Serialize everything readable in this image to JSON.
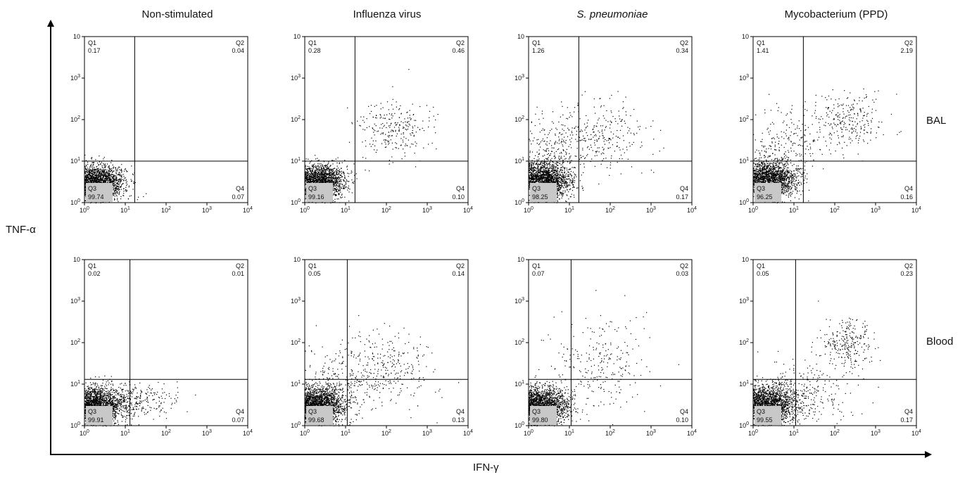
{
  "columns": [
    "Non-stimulated",
    "Influenza virus",
    "S. pneumoniae",
    "Mycobacterium (PPD)"
  ],
  "rows": [
    "BAL",
    "Blood"
  ],
  "axes": {
    "x_label": "IFN-γ",
    "y_label": "TNF-α"
  },
  "colors": {
    "dots": "#000000",
    "q3_box": "#c8c8c8"
  },
  "chart_data": [
    {
      "type": "scatter",
      "column": "Non-stimulated",
      "row": "BAL",
      "xlim": [
        1,
        10000
      ],
      "ylim": [
        1,
        10000
      ],
      "scale": "log",
      "gate": {
        "x": 17,
        "y": 10
      },
      "quadrants": {
        "Q1": {
          "label": "Q1",
          "value": "0.17"
        },
        "Q2": {
          "label": "Q2",
          "value": "0.04"
        },
        "Q3": {
          "label": "Q3",
          "value": "99.74"
        },
        "Q4": {
          "label": "Q4",
          "value": "0.07"
        }
      },
      "population": {
        "core": {
          "mu": [
            0.35,
            0.5
          ],
          "sd": [
            0.32,
            0.2
          ]
        },
        "spread": []
      }
    },
    {
      "type": "scatter",
      "column": "Influenza virus",
      "row": "BAL",
      "xlim": [
        1,
        10000
      ],
      "ylim": [
        1,
        10000
      ],
      "scale": "log",
      "gate": {
        "x": 17,
        "y": 10
      },
      "quadrants": {
        "Q1": {
          "label": "Q1",
          "value": "0.28"
        },
        "Q2": {
          "label": "Q2",
          "value": "0.46"
        },
        "Q3": {
          "label": "Q3",
          "value": "99.16"
        },
        "Q4": {
          "label": "Q4",
          "value": "0.10"
        }
      },
      "population": {
        "core": {
          "mu": [
            0.38,
            0.52
          ],
          "sd": [
            0.3,
            0.2
          ]
        },
        "spread": [
          {
            "mu": [
              2.2,
              1.8
            ],
            "sd": [
              0.45,
              0.35
            ]
          }
        ]
      }
    },
    {
      "type": "scatter",
      "column": "S. pneumoniae",
      "row": "BAL",
      "xlim": [
        1,
        10000
      ],
      "ylim": [
        1,
        10000
      ],
      "scale": "log",
      "gate": {
        "x": 17,
        "y": 10
      },
      "quadrants": {
        "Q1": {
          "label": "Q1",
          "value": "1.26"
        },
        "Q2": {
          "label": "Q2",
          "value": "0.34"
        },
        "Q3": {
          "label": "Q3",
          "value": "98.25"
        },
        "Q4": {
          "label": "Q4",
          "value": "0.17"
        }
      },
      "population": {
        "core": {
          "mu": [
            0.4,
            0.55
          ],
          "sd": [
            0.32,
            0.22
          ]
        },
        "spread": [
          {
            "mu": [
              0.6,
              1.3
            ],
            "sd": [
              0.45,
              0.45
            ]
          },
          {
            "mu": [
              1.8,
              1.6
            ],
            "sd": [
              0.55,
              0.4
            ]
          }
        ]
      }
    },
    {
      "type": "scatter",
      "column": "Mycobacterium (PPD)",
      "row": "BAL",
      "xlim": [
        1,
        10000
      ],
      "ylim": [
        1,
        10000
      ],
      "scale": "log",
      "gate": {
        "x": 17,
        "y": 10
      },
      "quadrants": {
        "Q1": {
          "label": "Q1",
          "value": "1.41"
        },
        "Q2": {
          "label": "Q2",
          "value": "2.19"
        },
        "Q3": {
          "label": "Q3",
          "value": "96.25"
        },
        "Q4": {
          "label": "Q4",
          "value": "0.16"
        }
      },
      "population": {
        "core": {
          "mu": [
            0.42,
            0.56
          ],
          "sd": [
            0.32,
            0.22
          ]
        },
        "spread": [
          {
            "mu": [
              2.35,
              2.0
            ],
            "sd": [
              0.42,
              0.32
            ]
          },
          {
            "mu": [
              0.8,
              1.4
            ],
            "sd": [
              0.5,
              0.4
            ]
          }
        ]
      }
    },
    {
      "type": "scatter",
      "column": "Non-stimulated",
      "row": "Blood",
      "xlim": [
        1,
        10000
      ],
      "ylim": [
        1,
        10000
      ],
      "scale": "log",
      "gate": {
        "x": 13,
        "y": 13
      },
      "quadrants": {
        "Q1": {
          "label": "Q1",
          "value": "0.02"
        },
        "Q2": {
          "label": "Q2",
          "value": "0.01"
        },
        "Q3": {
          "label": "Q3",
          "value": "99.91"
        },
        "Q4": {
          "label": "Q4",
          "value": "0.07"
        }
      },
      "population": {
        "core": {
          "mu": [
            0.32,
            0.5
          ],
          "sd": [
            0.34,
            0.22
          ]
        },
        "spread": [
          {
            "mu": [
              1.3,
              0.6
            ],
            "sd": [
              0.45,
              0.2
            ]
          }
        ]
      }
    },
    {
      "type": "scatter",
      "column": "Influenza virus",
      "row": "Blood",
      "xlim": [
        1,
        10000
      ],
      "ylim": [
        1,
        10000
      ],
      "scale": "log",
      "gate": {
        "x": 11,
        "y": 13
      },
      "quadrants": {
        "Q1": {
          "label": "Q1",
          "value": "0.05"
        },
        "Q2": {
          "label": "Q2",
          "value": "0.14"
        },
        "Q3": {
          "label": "Q3",
          "value": "99.68"
        },
        "Q4": {
          "label": "Q4",
          "value": "0.13"
        }
      },
      "population": {
        "core": {
          "mu": [
            0.35,
            0.52
          ],
          "sd": [
            0.33,
            0.22
          ]
        },
        "spread": [
          {
            "mu": [
              2.0,
              1.4
            ],
            "sd": [
              0.6,
              0.45
            ]
          },
          {
            "mu": [
              0.9,
              1.1
            ],
            "sd": [
              0.6,
              0.5
            ]
          }
        ]
      }
    },
    {
      "type": "scatter",
      "column": "S. pneumoniae",
      "row": "Blood",
      "xlim": [
        1,
        10000
      ],
      "ylim": [
        1,
        10000
      ],
      "scale": "log",
      "gate": {
        "x": 11,
        "y": 13
      },
      "quadrants": {
        "Q1": {
          "label": "Q1",
          "value": "0.07"
        },
        "Q2": {
          "label": "Q2",
          "value": "0.03"
        },
        "Q3": {
          "label": "Q3",
          "value": "99.80"
        },
        "Q4": {
          "label": "Q4",
          "value": "0.10"
        }
      },
      "population": {
        "core": {
          "mu": [
            0.33,
            0.5
          ],
          "sd": [
            0.33,
            0.22
          ]
        },
        "spread": [
          {
            "mu": [
              1.7,
              1.5
            ],
            "sd": [
              0.6,
              0.6
            ]
          }
        ]
      }
    },
    {
      "type": "scatter",
      "column": "Mycobacterium (PPD)",
      "row": "Blood",
      "xlim": [
        1,
        10000
      ],
      "ylim": [
        1,
        10000
      ],
      "scale": "log",
      "gate": {
        "x": 11,
        "y": 13
      },
      "quadrants": {
        "Q1": {
          "label": "Q1",
          "value": "0.05"
        },
        "Q2": {
          "label": "Q2",
          "value": "0.23"
        },
        "Q3": {
          "label": "Q3",
          "value": "99.55"
        },
        "Q4": {
          "label": "Q4",
          "value": "0.17"
        }
      },
      "population": {
        "core": {
          "mu": [
            0.38,
            0.52
          ],
          "sd": [
            0.36,
            0.24
          ]
        },
        "spread": [
          {
            "mu": [
              2.3,
              2.0
            ],
            "sd": [
              0.35,
              0.3
            ]
          },
          {
            "mu": [
              1.3,
              0.8
            ],
            "sd": [
              0.6,
              0.35
            ]
          }
        ]
      }
    }
  ]
}
